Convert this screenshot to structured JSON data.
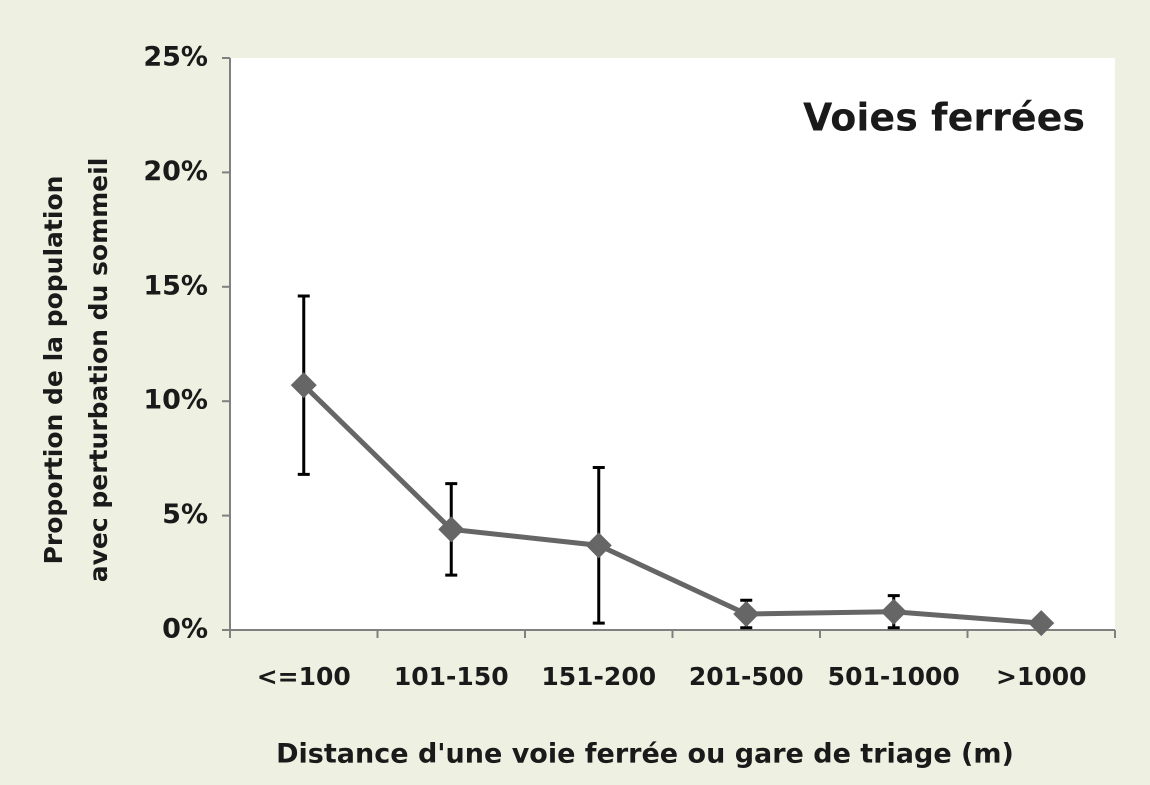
{
  "chart_data": {
    "type": "line",
    "title": "Voies ferrées",
    "x_label": "Distance d'une voie ferrée ou gare de triage (m)",
    "y_label": [
      "Proportion de la population",
      "avec perturbation du sommeil"
    ],
    "categories": [
      "<=100",
      "101-150",
      "151-200",
      "201-500",
      "501-1000",
      ">1000"
    ],
    "series": [
      {
        "name": "Voies ferrées",
        "color": "#666666",
        "values": [
          10.7,
          4.4,
          3.7,
          0.7,
          0.8,
          0.3
        ],
        "errors": [
          3.9,
          2.0,
          3.4,
          0.6,
          0.7,
          null
        ]
      }
    ],
    "ylim": [
      0,
      25
    ],
    "yticks": [
      {
        "value": 0,
        "label": "0%"
      },
      {
        "value": 5,
        "label": "5%"
      },
      {
        "value": 10,
        "label": "10%"
      },
      {
        "value": 15,
        "label": "15%"
      },
      {
        "value": 20,
        "label": "20%"
      },
      {
        "value": 25,
        "label": "25%"
      }
    ],
    "grid": false
  }
}
